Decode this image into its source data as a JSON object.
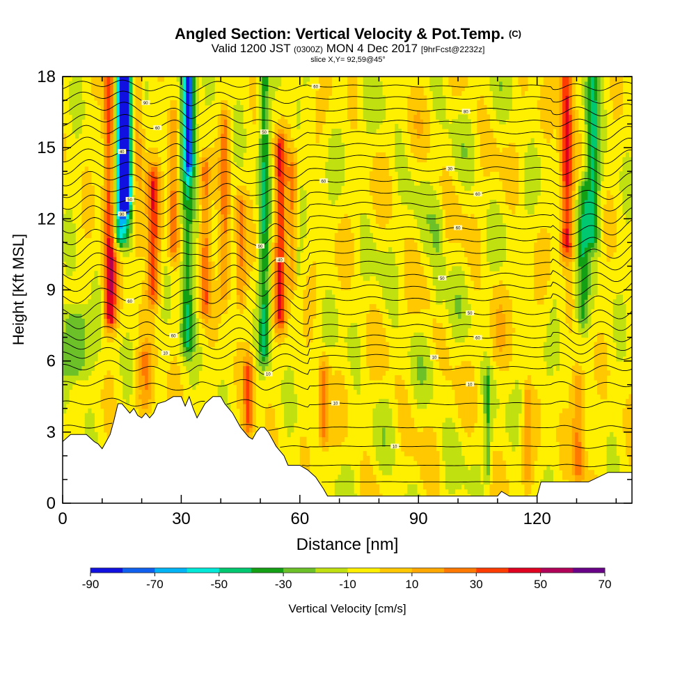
{
  "header": {
    "title": "Angled Section: Vertical Velocity & Pot.Temp.",
    "title_unit": "(C)",
    "valid_prefix": "Valid 1200 JST",
    "valid_utc": "(0300Z)",
    "valid_date": "MON 4 Dec 2017",
    "forecast": "[9hrFcst@2232z]",
    "slice": "slice X,Y= 92,59@45°"
  },
  "chart_data": {
    "type": "heatmap",
    "xlabel": "Distance [nm]",
    "ylabel": "Height [Kft MSL]",
    "xlim": [
      0,
      144
    ],
    "ylim": [
      0,
      18
    ],
    "x_ticks": [
      0,
      30,
      60,
      90,
      120
    ],
    "y_ticks": [
      0,
      3,
      6,
      9,
      12,
      15,
      18
    ],
    "colorbar": {
      "label": "Vertical Velocity [cm/s]",
      "tick_labels": [
        -90,
        -70,
        -50,
        -30,
        -10,
        10,
        30,
        50,
        70
      ],
      "bins": [
        {
          "from": -90,
          "to": -80,
          "color": "#1010e0"
        },
        {
          "from": -80,
          "to": -70,
          "color": "#1060f0"
        },
        {
          "from": -70,
          "to": -60,
          "color": "#00b4f5"
        },
        {
          "from": -60,
          "to": -50,
          "color": "#00e8d8"
        },
        {
          "from": -50,
          "to": -40,
          "color": "#00c870"
        },
        {
          "from": -40,
          "to": -30,
          "color": "#14a014"
        },
        {
          "from": -30,
          "to": -20,
          "color": "#6cc028"
        },
        {
          "from": -20,
          "to": -10,
          "color": "#c0e010"
        },
        {
          "from": -10,
          "to": 0,
          "color": "#fff000"
        },
        {
          "from": 0,
          "to": 10,
          "color": "#ffc800"
        },
        {
          "from": 10,
          "to": 20,
          "color": "#ffa800"
        },
        {
          "from": 20,
          "to": 30,
          "color": "#ff7800"
        },
        {
          "from": 30,
          "to": 40,
          "color": "#ff3c00"
        },
        {
          "from": 40,
          "to": 50,
          "color": "#e00020"
        },
        {
          "from": 50,
          "to": 60,
          "color": "#b00058"
        },
        {
          "from": 60,
          "to": 70,
          "color": "#680088"
        }
      ]
    },
    "background_value": -5,
    "features": [
      {
        "x": 12,
        "y_from": 8,
        "y_to": 18,
        "value": 55,
        "width": 1.6
      },
      {
        "x": 14.5,
        "y_from": 11.5,
        "y_to": 18,
        "value": -60,
        "width": 2.2
      },
      {
        "x": 16,
        "y_from": 13,
        "y_to": 18,
        "value": -85,
        "width": 1.3
      },
      {
        "x": 19,
        "y_from": 11,
        "y_to": 18,
        "value": 20,
        "width": 1.5
      },
      {
        "x": 23,
        "y_from": 9,
        "y_to": 13.5,
        "value": 38,
        "width": 1.6
      },
      {
        "x": 28,
        "y_from": 11,
        "y_to": 16,
        "value": 32,
        "width": 1.3
      },
      {
        "x": 31.5,
        "y_from": 7,
        "y_to": 18,
        "value": -35,
        "width": 1.6
      },
      {
        "x": 32,
        "y_from": 14.5,
        "y_to": 18,
        "value": -55,
        "width": 1.4
      },
      {
        "x": 36,
        "y_from": 8.5,
        "y_to": 14,
        "value": 33,
        "width": 1.3
      },
      {
        "x": 41,
        "y_from": 9,
        "y_to": 16,
        "value": 28,
        "width": 1.2
      },
      {
        "x": 45,
        "y_from": 9,
        "y_to": 12.5,
        "value": 25,
        "width": 1.3
      },
      {
        "x": 51,
        "y_from": 6.5,
        "y_to": 18,
        "value": -32,
        "width": 1.3
      },
      {
        "x": 55,
        "y_from": 8,
        "y_to": 15,
        "value": 42,
        "width": 1.4
      },
      {
        "x": 58,
        "y_from": 9.5,
        "y_to": 14,
        "value": 25,
        "width": 1.1
      },
      {
        "x": 3.5,
        "y_from": 6,
        "y_to": 7.5,
        "value": -30,
        "width": 3.5
      },
      {
        "x": 95,
        "y_from": 8.5,
        "y_to": 12,
        "value": -12,
        "width": 1.6
      },
      {
        "x": 110,
        "y_from": 6.5,
        "y_to": 9,
        "value": 8,
        "width": 1.8
      },
      {
        "x": 127.5,
        "y_from": 11,
        "y_to": 18,
        "value": 50,
        "width": 1.6
      },
      {
        "x": 131.5,
        "y_from": 8,
        "y_to": 13,
        "value": -30,
        "width": 1.6
      },
      {
        "x": 134,
        "y_from": 11.5,
        "y_to": 18,
        "value": -35,
        "width": 1.8
      },
      {
        "x": 130.5,
        "y_from": 1.5,
        "y_to": 5,
        "value": 30,
        "width": 1.6
      },
      {
        "x": 107.5,
        "y_from": 1.5,
        "y_to": 5,
        "value": -20,
        "width": 0.8
      },
      {
        "x": 117.5,
        "y_from": 1.5,
        "y_to": 4.5,
        "value": 20,
        "width": 1.0
      },
      {
        "x": 66,
        "y_from": 3,
        "y_to": 5.5,
        "value": 30,
        "width": 1.3
      },
      {
        "x": 47,
        "y_from": 3.5,
        "y_to": 5.5,
        "value": 38,
        "width": 1.2
      },
      {
        "x": 21,
        "y_from": 4.5,
        "y_to": 6,
        "value": 25,
        "width": 2.0
      }
    ],
    "terrain": [
      [
        0,
        2.6
      ],
      [
        2,
        2.9
      ],
      [
        4,
        2.9
      ],
      [
        6,
        2.9
      ],
      [
        8,
        2.6
      ],
      [
        9,
        2.5
      ],
      [
        10,
        2.3
      ],
      [
        11,
        2.6
      ],
      [
        12,
        2.9
      ],
      [
        13,
        3.5
      ],
      [
        14,
        4.2
      ],
      [
        15,
        4.2
      ],
      [
        16,
        4.0
      ],
      [
        17,
        3.8
      ],
      [
        18,
        4.0
      ],
      [
        19,
        3.7
      ],
      [
        20,
        3.6
      ],
      [
        21,
        3.8
      ],
      [
        22,
        3.6
      ],
      [
        23,
        3.8
      ],
      [
        24,
        4.2
      ],
      [
        26,
        4.3
      ],
      [
        28,
        4.5
      ],
      [
        30,
        4.5
      ],
      [
        31,
        4.1
      ],
      [
        32,
        4.5
      ],
      [
        33,
        4.0
      ],
      [
        34,
        3.6
      ],
      [
        35,
        3.9
      ],
      [
        36,
        4.2
      ],
      [
        38,
        4.5
      ],
      [
        40,
        4.5
      ],
      [
        41,
        4.2
      ],
      [
        42,
        4.0
      ],
      [
        43,
        3.8
      ],
      [
        44,
        3.5
      ],
      [
        45,
        3.2
      ],
      [
        46,
        3.0
      ],
      [
        47,
        2.8
      ],
      [
        48,
        2.7
      ],
      [
        49,
        3.0
      ],
      [
        50,
        3.2
      ],
      [
        51,
        3.2
      ],
      [
        52,
        3.0
      ],
      [
        53,
        2.7
      ],
      [
        54,
        2.4
      ],
      [
        55,
        2.2
      ],
      [
        56,
        2.0
      ],
      [
        57,
        1.6
      ],
      [
        60,
        1.6
      ],
      [
        62,
        1.4
      ],
      [
        64,
        1.1
      ],
      [
        66,
        0.6
      ],
      [
        67,
        0.3
      ],
      [
        69,
        0.3
      ],
      [
        71,
        0.3
      ],
      [
        110,
        0.3
      ],
      [
        111,
        0.5
      ],
      [
        113,
        0.3
      ],
      [
        120,
        0.3
      ],
      [
        121,
        0.9
      ],
      [
        128,
        0.9
      ],
      [
        133,
        0.9
      ],
      [
        138,
        1.3
      ],
      [
        144,
        1.3
      ]
    ],
    "isentropes": [
      {
        "base": 0.9,
        "amp": 0.1,
        "ground": true
      },
      {
        "base": 1.6,
        "amp": 0.15,
        "ground": true
      },
      {
        "base": 2.4,
        "amp": 0.2,
        "ground": true,
        "label": "10",
        "label_x": 84
      },
      {
        "base": 3.2,
        "amp": 0.3,
        "ground": true
      },
      {
        "base": 4.2,
        "amp": 0.4,
        "ground": true,
        "label": "10",
        "label_x": 69
      },
      {
        "base": 5.0,
        "amp": 0.5,
        "ground": true,
        "label": "10",
        "label_x": 103
      },
      {
        "base": 5.7,
        "amp": 0.6,
        "ground": true,
        "label": "10",
        "label_x": 52
      },
      {
        "base": 6.2,
        "amp": 0.7,
        "label": "10",
        "label_x": 94
      },
      {
        "base": 6.6,
        "amp": 0.8,
        "label": "10",
        "label_x": 26
      },
      {
        "base": 7.0,
        "amp": 0.9,
        "label": "60",
        "label_x": 105
      },
      {
        "base": 7.5,
        "amp": 1.0,
        "label": "60",
        "label_x": 28
      },
      {
        "base": 8.0,
        "amp": 1.0,
        "label": "50",
        "label_x": 103
      },
      {
        "base": 8.6,
        "amp": 1.0,
        "label": "60",
        "label_x": 17
      },
      {
        "base": 9.1,
        "amp": 1.0
      },
      {
        "base": 9.6,
        "amp": 1.0,
        "label": "50",
        "label_x": 96
      },
      {
        "base": 10.1,
        "amp": 1.0,
        "label": "40",
        "label_x": 55
      },
      {
        "base": 10.6,
        "amp": 1.0
      },
      {
        "base": 11.1,
        "amp": 1.0,
        "label": "90",
        "label_x": 50
      },
      {
        "base": 11.6,
        "amp": 1.0,
        "label": "60",
        "label_x": 100
      },
      {
        "base": 12.1,
        "amp": 1.0,
        "label": "90",
        "label_x": 15
      },
      {
        "base": 12.6,
        "amp": 0.9,
        "label": "50",
        "label_x": 17
      },
      {
        "base": 13.1,
        "amp": 0.9,
        "label": "60",
        "label_x": 105
      },
      {
        "base": 13.6,
        "amp": 0.9,
        "label": "60",
        "label_x": 66
      },
      {
        "base": 14.1,
        "amp": 0.9,
        "label": "30",
        "label_x": 98
      },
      {
        "base": 14.6,
        "amp": 0.8,
        "label": "40",
        "label_x": 15
      },
      {
        "base": 15.1,
        "amp": 0.8
      },
      {
        "base": 15.6,
        "amp": 0.8,
        "label": "50",
        "label_x": 51
      },
      {
        "base": 16.1,
        "amp": 0.7,
        "label": "60",
        "label_x": 24
      },
      {
        "base": 16.6,
        "amp": 0.7,
        "label": "80",
        "label_x": 102
      },
      {
        "base": 17.1,
        "amp": 0.6,
        "label": "90",
        "label_x": 21
      },
      {
        "base": 17.6,
        "amp": 0.5,
        "label": "60",
        "label_x": 64
      }
    ]
  }
}
